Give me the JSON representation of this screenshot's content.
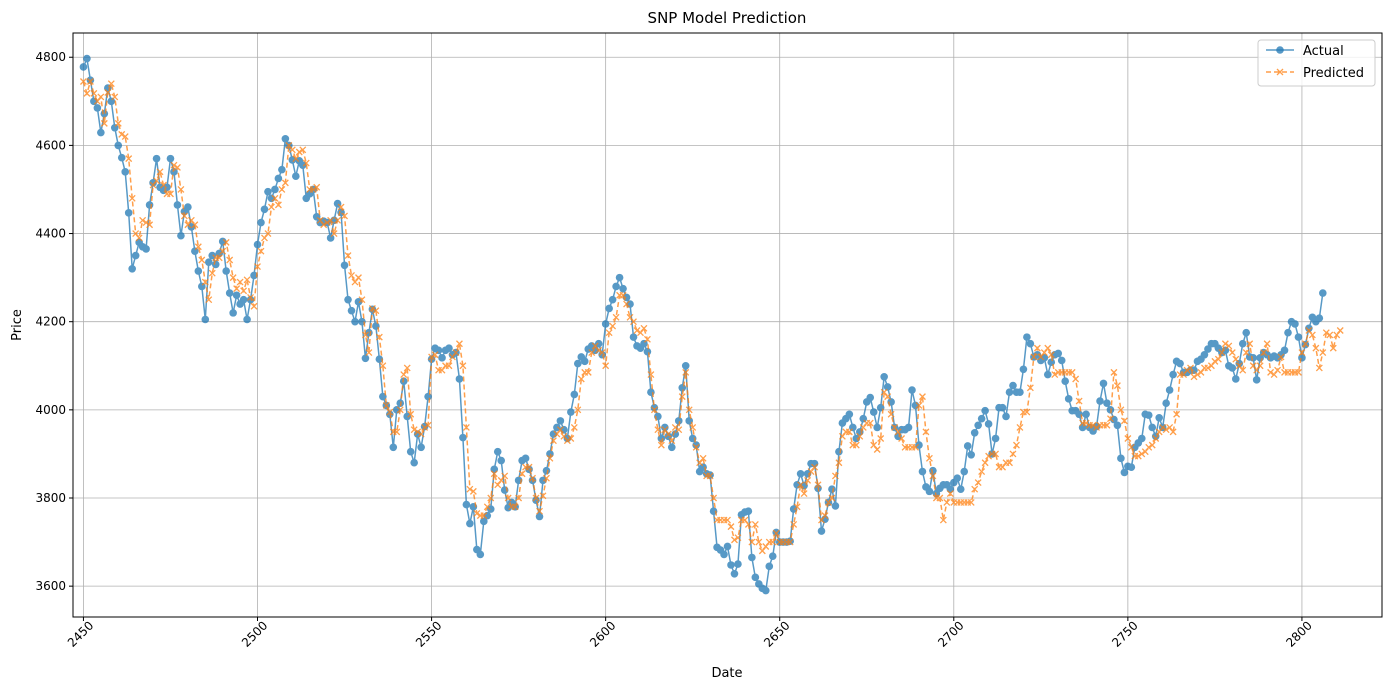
{
  "chart_data": {
    "type": "line",
    "title": "SNP Model Prediction",
    "xlabel": "Date",
    "ylabel": "Price",
    "xlim": [
      2447,
      2823
    ],
    "ylim": [
      3530,
      4855
    ],
    "xticks": [
      2450,
      2500,
      2550,
      2600,
      2650,
      2700,
      2750,
      2800
    ],
    "yticks": [
      3600,
      3800,
      4000,
      4200,
      4400,
      4600,
      4800
    ],
    "grid": true,
    "legend_position": "top-right",
    "x_start": 2450,
    "series": [
      {
        "name": "Actual",
        "color": "#1f77b4",
        "marker": "circle",
        "linestyle": "solid",
        "values": [
          4778,
          4797,
          4748,
          4700,
          4685,
          4629,
          4672,
          4730,
          4700,
          4640,
          4600,
          4572,
          4540,
          4447,
          4320,
          4350,
          4380,
          4370,
          4365,
          4465,
          4515,
          4570,
          4505,
          4498,
          4505,
          4570,
          4540,
          4465,
          4395,
          4450,
          4460,
          4415,
          4360,
          4315,
          4280,
          4205,
          4335,
          4350,
          4330,
          4355,
          4382,
          4315,
          4265,
          4220,
          4260,
          4240,
          4250,
          4205,
          4250,
          4305,
          4375,
          4425,
          4455,
          4495,
          4480,
          4500,
          4525,
          4545,
          4615,
          4600,
          4567,
          4530,
          4565,
          4555,
          4480,
          4490,
          4500,
          4438,
          4425,
          4428,
          4425,
          4390,
          4430,
          4468,
          4448,
          4328,
          4250,
          4225,
          4200,
          4245,
          4200,
          4117,
          4175,
          4228,
          4190,
          4115,
          4030,
          4010,
          3990,
          3915,
          4000,
          4015,
          4065,
          3985,
          3905,
          3880,
          3945,
          3915,
          3962,
          4030,
          4115,
          4140,
          4135,
          4118,
          4135,
          4140,
          4125,
          4130,
          4070,
          3937,
          3785,
          3742,
          3780,
          3683,
          3672,
          3747,
          3760,
          3775,
          3865,
          3905,
          3885,
          3818,
          3778,
          3790,
          3780,
          3840,
          3885,
          3890,
          3865,
          3840,
          3795,
          3758,
          3840,
          3862,
          3900,
          3945,
          3960,
          3975,
          3955,
          3935,
          3995,
          4035,
          4105,
          4120,
          4110,
          4138,
          4145,
          4135,
          4150,
          4125,
          4195,
          4230,
          4250,
          4280,
          4300,
          4275,
          4255,
          4240,
          4165,
          4145,
          4140,
          4150,
          4132,
          4040,
          4005,
          3985,
          3935,
          3960,
          3940,
          3915,
          3945,
          3975,
          4050,
          4100,
          3975,
          3935,
          3920,
          3860,
          3870,
          3855,
          3852,
          3770,
          3688,
          3682,
          3672,
          3690,
          3648,
          3628,
          3650,
          3762,
          3768,
          3770,
          3665,
          3620,
          3605,
          3595,
          3590,
          3645,
          3668,
          3722,
          3700,
          3700,
          3700,
          3702,
          3775,
          3830,
          3855,
          3828,
          3855,
          3878,
          3878,
          3822,
          3725,
          3752,
          3790,
          3820,
          3782,
          3905,
          3970,
          3980,
          3990,
          3960,
          3935,
          3950,
          3980,
          4018,
          4028,
          3995,
          3960,
          4005,
          4075,
          4052,
          4018,
          3960,
          3940,
          3955,
          3955,
          3960,
          4045,
          4010,
          3920,
          3860,
          3825,
          3815,
          3862,
          3810,
          3822,
          3830,
          3830,
          3820,
          3835,
          3845,
          3820,
          3860,
          3918,
          3898,
          3948,
          3965,
          3980,
          3998,
          3968,
          3900,
          3935,
          4005,
          4005,
          3985,
          4040,
          4055,
          4040,
          4040,
          4092,
          4165,
          4150,
          4120,
          4125,
          4112,
          4118,
          4080,
          4108,
          4125,
          4128,
          4112,
          4065,
          4025,
          3998,
          3998,
          3990,
          3960,
          3990,
          3960,
          3952,
          3962,
          4020,
          4060,
          4015,
          4000,
          3978,
          3965,
          3890,
          3858,
          3872,
          3870,
          3915,
          3925,
          3935,
          3990,
          3988,
          3960,
          3940,
          3982,
          3960,
          4015,
          4045,
          4080,
          4110,
          4105,
          4085,
          4085,
          4090,
          4090,
          4110,
          4115,
          4125,
          4138,
          4150,
          4150,
          4140,
          4130,
          4135,
          4100,
          4095,
          4070,
          4105,
          4150,
          4175,
          4120,
          4118,
          4068,
          4118,
          4130,
          4125,
          4118,
          4122,
          4118,
          4125,
          4135,
          4175,
          4200,
          4195,
          4165,
          4118,
          4148,
          4185,
          4210,
          4200,
          4208,
          4265
        ]
      },
      {
        "name": "Predicted",
        "color": "#ff7f0e",
        "marker": "x",
        "linestyle": "dashed",
        "values": [
          4745,
          4718,
          4745,
          4718,
          4700,
          4710,
          4650,
          4720,
          4740,
          4710,
          4650,
          4625,
          4620,
          4570,
          4480,
          4400,
          4390,
          4430,
          4425,
          4420,
          4510,
          4520,
          4540,
          4510,
          4490,
          4490,
          4555,
          4550,
          4500,
          4440,
          4420,
          4430,
          4420,
          4370,
          4340,
          4290,
          4250,
          4310,
          4345,
          4345,
          4360,
          4380,
          4340,
          4300,
          4275,
          4290,
          4270,
          4295,
          4255,
          4235,
          4325,
          4360,
          4390,
          4400,
          4460,
          4480,
          4465,
          4500,
          4515,
          4600,
          4590,
          4570,
          4585,
          4590,
          4560,
          4500,
          4500,
          4505,
          4430,
          4420,
          4425,
          4430,
          4400,
          4430,
          4460,
          4440,
          4350,
          4305,
          4290,
          4300,
          4250,
          4170,
          4130,
          4230,
          4225,
          4165,
          4100,
          4010,
          3995,
          3950,
          3950,
          4000,
          4080,
          4095,
          3990,
          3955,
          3950,
          3945,
          3960,
          3965,
          4120,
          4125,
          4090,
          4090,
          4100,
          4100,
          4120,
          4130,
          4150,
          4100,
          3960,
          3820,
          3815,
          3765,
          3760,
          3760,
          3780,
          3800,
          3855,
          3830,
          3840,
          3850,
          3800,
          3780,
          3780,
          3800,
          3855,
          3870,
          3870,
          3845,
          3800,
          3770,
          3805,
          3845,
          3890,
          3930,
          3945,
          3955,
          3940,
          3930,
          3935,
          3960,
          4000,
          4070,
          4085,
          4085,
          4130,
          4145,
          4135,
          4130,
          4100,
          4175,
          4190,
          4210,
          4260,
          4260,
          4240,
          4210,
          4200,
          4180,
          4175,
          4185,
          4160,
          4080,
          4000,
          3955,
          3920,
          3955,
          3945,
          3930,
          3960,
          3955,
          4030,
          4085,
          4000,
          3960,
          3915,
          3880,
          3890,
          3850,
          3850,
          3800,
          3750,
          3750,
          3750,
          3750,
          3735,
          3705,
          3710,
          3750,
          3750,
          3740,
          3700,
          3740,
          3700,
          3680,
          3690,
          3700,
          3700,
          3720,
          3700,
          3700,
          3700,
          3700,
          3740,
          3780,
          3830,
          3810,
          3840,
          3860,
          3870,
          3830,
          3750,
          3760,
          3790,
          3800,
          3850,
          3880,
          3940,
          3950,
          3950,
          3920,
          3920,
          3940,
          3960,
          3970,
          3970,
          3920,
          3910,
          3935,
          4040,
          4030,
          3990,
          3960,
          3950,
          3935,
          3915,
          3915,
          3915,
          3915,
          4010,
          4030,
          3950,
          3890,
          3850,
          3800,
          3800,
          3750,
          3790,
          3810,
          3790,
          3790,
          3790,
          3790,
          3790,
          3790,
          3820,
          3835,
          3860,
          3880,
          3895,
          3900,
          3900,
          3870,
          3870,
          3880,
          3880,
          3900,
          3920,
          3960,
          3995,
          3995,
          4050,
          4120,
          4140,
          4120,
          4130,
          4140,
          4125,
          4080,
          4085,
          4085,
          4085,
          4085,
          4085,
          4070,
          4020,
          3970,
          3970,
          3965,
          3965,
          3960,
          3965,
          3965,
          3965,
          3980,
          4085,
          4055,
          4000,
          3975,
          3935,
          3915,
          3895,
          3895,
          3900,
          3905,
          3915,
          3920,
          3935,
          3950,
          3960,
          3955,
          3960,
          3950,
          3990,
          4080,
          4080,
          4090,
          4095,
          4075,
          4080,
          4085,
          4095,
          4095,
          4100,
          4110,
          4115,
          4130,
          4150,
          4145,
          4130,
          4115,
          4100,
          4090,
          4130,
          4150,
          4100,
          4090,
          4100,
          4130,
          4150,
          4085,
          4080,
          4090,
          4120,
          4085,
          4085,
          4085,
          4085,
          4085,
          4130,
          4150,
          4180,
          4170,
          4140,
          4095,
          4130,
          4175,
          4170,
          4140,
          4170,
          4180
        ]
      }
    ]
  }
}
